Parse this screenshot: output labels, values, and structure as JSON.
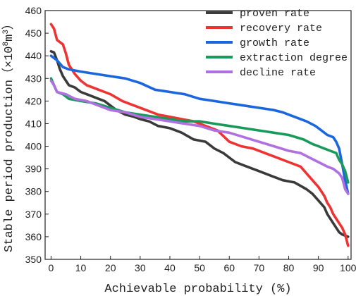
{
  "chart_data": {
    "type": "line",
    "xlabel": "Achievable probability (%)",
    "ylabel": "Stable period production（×10⁸m³）",
    "ylabel_parts": {
      "main": "Stable period production（×10",
      "exp1": "8",
      "mid": "m",
      "exp2": "3",
      "end": "）"
    },
    "xlim": [
      -2,
      101
    ],
    "ylim": [
      350,
      460
    ],
    "x_ticks": [
      0,
      10,
      20,
      30,
      40,
      50,
      60,
      70,
      80,
      90,
      100
    ],
    "y_ticks": [
      350,
      360,
      370,
      380,
      390,
      400,
      410,
      420,
      430,
      440,
      450,
      460
    ],
    "legend_position": "top-right",
    "grid": false,
    "series": [
      {
        "name": "proven rate",
        "color": "#3a3a3a",
        "points": [
          [
            0,
            442
          ],
          [
            1,
            441.5
          ],
          [
            2,
            438
          ],
          [
            3,
            434
          ],
          [
            4,
            431
          ],
          [
            5,
            429
          ],
          [
            6,
            427
          ],
          [
            8,
            426
          ],
          [
            10,
            424
          ],
          [
            12,
            423
          ],
          [
            14,
            422
          ],
          [
            16,
            421
          ],
          [
            18,
            420
          ],
          [
            20,
            418
          ],
          [
            22,
            416
          ],
          [
            25,
            414
          ],
          [
            28,
            413
          ],
          [
            30,
            412
          ],
          [
            33,
            411
          ],
          [
            36,
            409
          ],
          [
            40,
            408
          ],
          [
            44,
            406
          ],
          [
            48,
            403
          ],
          [
            52,
            402
          ],
          [
            55,
            399
          ],
          [
            58,
            397
          ],
          [
            62,
            393
          ],
          [
            66,
            391
          ],
          [
            70,
            389
          ],
          [
            74,
            387
          ],
          [
            78,
            385
          ],
          [
            82,
            384
          ],
          [
            86,
            381
          ],
          [
            88,
            379
          ],
          [
            90,
            376
          ],
          [
            92,
            373
          ],
          [
            93,
            370
          ],
          [
            94,
            368
          ],
          [
            95,
            366
          ],
          [
            96,
            364
          ],
          [
            97,
            362
          ],
          [
            98,
            361
          ],
          [
            99,
            360.5
          ],
          [
            100,
            360
          ]
        ]
      },
      {
        "name": "recovery rate",
        "color": "#ee3333",
        "points": [
          [
            0,
            454
          ],
          [
            1,
            452
          ],
          [
            2,
            447
          ],
          [
            4,
            445
          ],
          [
            5,
            441
          ],
          [
            6,
            436
          ],
          [
            8,
            432
          ],
          [
            10,
            429
          ],
          [
            12,
            427
          ],
          [
            14,
            426
          ],
          [
            16,
            425
          ],
          [
            18,
            424
          ],
          [
            20,
            423
          ],
          [
            24,
            420
          ],
          [
            28,
            418
          ],
          [
            32,
            416
          ],
          [
            36,
            414
          ],
          [
            40,
            413
          ],
          [
            44,
            412
          ],
          [
            48,
            411
          ],
          [
            52,
            409
          ],
          [
            56,
            407
          ],
          [
            60,
            402
          ],
          [
            64,
            400
          ],
          [
            68,
            399
          ],
          [
            72,
            397
          ],
          [
            76,
            395
          ],
          [
            80,
            393
          ],
          [
            84,
            391
          ],
          [
            86,
            388
          ],
          [
            88,
            385
          ],
          [
            90,
            382
          ],
          [
            92,
            378
          ],
          [
            93,
            375
          ],
          [
            94,
            373
          ],
          [
            95,
            370
          ],
          [
            96,
            368
          ],
          [
            97,
            366
          ],
          [
            98,
            364
          ],
          [
            99,
            361
          ],
          [
            100,
            356
          ]
        ]
      },
      {
        "name": "growth rate",
        "color": "#1a66dd",
        "points": [
          [
            0,
            440
          ],
          [
            2,
            438
          ],
          [
            4,
            435
          ],
          [
            6,
            434
          ],
          [
            10,
            433
          ],
          [
            15,
            432
          ],
          [
            20,
            431
          ],
          [
            25,
            430
          ],
          [
            30,
            428
          ],
          [
            35,
            425
          ],
          [
            40,
            424
          ],
          [
            45,
            423
          ],
          [
            50,
            421
          ],
          [
            55,
            420
          ],
          [
            60,
            419
          ],
          [
            65,
            418
          ],
          [
            70,
            417
          ],
          [
            75,
            416
          ],
          [
            78,
            415
          ],
          [
            82,
            413
          ],
          [
            86,
            411
          ],
          [
            89,
            409
          ],
          [
            91,
            407
          ],
          [
            93,
            405
          ],
          [
            95,
            404
          ],
          [
            96,
            402
          ],
          [
            97,
            399
          ],
          [
            98,
            392
          ],
          [
            99,
            385
          ],
          [
            100,
            379
          ]
        ]
      },
      {
        "name": "extraction degree",
        "color": "#1a9a5a",
        "points": [
          [
            0,
            430
          ],
          [
            1,
            427
          ],
          [
            2,
            424
          ],
          [
            4,
            423
          ],
          [
            6,
            421
          ],
          [
            10,
            420
          ],
          [
            15,
            419
          ],
          [
            20,
            417
          ],
          [
            25,
            415
          ],
          [
            30,
            414
          ],
          [
            35,
            413
          ],
          [
            40,
            412
          ],
          [
            45,
            411
          ],
          [
            50,
            411
          ],
          [
            55,
            410
          ],
          [
            60,
            409
          ],
          [
            65,
            408
          ],
          [
            70,
            407
          ],
          [
            75,
            406
          ],
          [
            80,
            405
          ],
          [
            85,
            403
          ],
          [
            88,
            401
          ],
          [
            90,
            400
          ],
          [
            92,
            399
          ],
          [
            94,
            398
          ],
          [
            96,
            397
          ],
          [
            97,
            394
          ],
          [
            98,
            392
          ],
          [
            99,
            389
          ],
          [
            100,
            384
          ]
        ]
      },
      {
        "name": "decline rate",
        "color": "#b070e0",
        "points": [
          [
            0,
            429
          ],
          [
            1,
            427
          ],
          [
            2,
            424
          ],
          [
            5,
            423
          ],
          [
            8,
            421
          ],
          [
            12,
            420
          ],
          [
            16,
            418
          ],
          [
            20,
            416
          ],
          [
            25,
            415
          ],
          [
            30,
            413
          ],
          [
            35,
            412
          ],
          [
            40,
            411
          ],
          [
            45,
            410
          ],
          [
            50,
            409
          ],
          [
            55,
            407
          ],
          [
            60,
            406
          ],
          [
            65,
            404
          ],
          [
            70,
            402
          ],
          [
            75,
            400
          ],
          [
            80,
            398
          ],
          [
            84,
            397
          ],
          [
            87,
            395
          ],
          [
            90,
            393
          ],
          [
            93,
            391
          ],
          [
            95,
            390
          ],
          [
            97,
            388
          ],
          [
            98,
            386
          ],
          [
            99,
            381
          ],
          [
            100,
            379
          ]
        ]
      }
    ]
  }
}
